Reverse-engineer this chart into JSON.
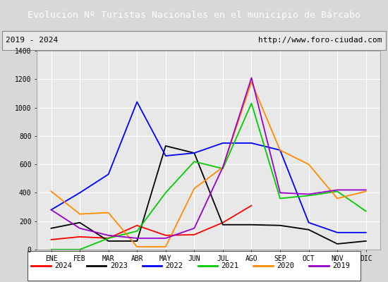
{
  "title": "Evolucion Nº Turistas Nacionales en el municipio de Bárcabo",
  "subtitle_left": "2019 - 2024",
  "subtitle_right": "http://www.foro-ciudad.com",
  "months": [
    "ENE",
    "FEB",
    "MAR",
    "ABR",
    "MAY",
    "JUN",
    "JUL",
    "AGO",
    "SEP",
    "OCT",
    "NOV",
    "DIC"
  ],
  "ylim": [
    0,
    1400
  ],
  "yticks": [
    0,
    200,
    400,
    600,
    800,
    1000,
    1200,
    1400
  ],
  "series": {
    "2024": {
      "color": "#ff0000",
      "values": [
        70,
        90,
        80,
        170,
        100,
        105,
        190,
        310,
        null,
        null,
        null,
        null
      ]
    },
    "2023": {
      "color": "#000000",
      "values": [
        150,
        190,
        60,
        60,
        730,
        680,
        175,
        175,
        170,
        140,
        40,
        60
      ]
    },
    "2022": {
      "color": "#0000ff",
      "values": [
        280,
        400,
        530,
        1040,
        660,
        680,
        750,
        750,
        700,
        190,
        120,
        120
      ]
    },
    "2021": {
      "color": "#00cc00",
      "values": [
        0,
        0,
        80,
        130,
        400,
        620,
        570,
        1030,
        360,
        380,
        410,
        270
      ]
    },
    "2020": {
      "color": "#ff8c00",
      "values": [
        410,
        250,
        260,
        20,
        20,
        430,
        580,
        1180,
        700,
        600,
        360,
        410
      ]
    },
    "2019": {
      "color": "#9900cc",
      "values": [
        280,
        150,
        100,
        80,
        80,
        150,
        580,
        1210,
        400,
        390,
        420,
        420
      ]
    }
  },
  "legend_order": [
    "2024",
    "2023",
    "2022",
    "2021",
    "2020",
    "2019"
  ],
  "title_bg_color": "#4a86c8",
  "title_text_color": "#ffffff",
  "plot_bg_color": "#e8e8e8",
  "grid_color": "#ffffff",
  "border_color": "#999999",
  "outer_bg_color": "#d8d8d8"
}
